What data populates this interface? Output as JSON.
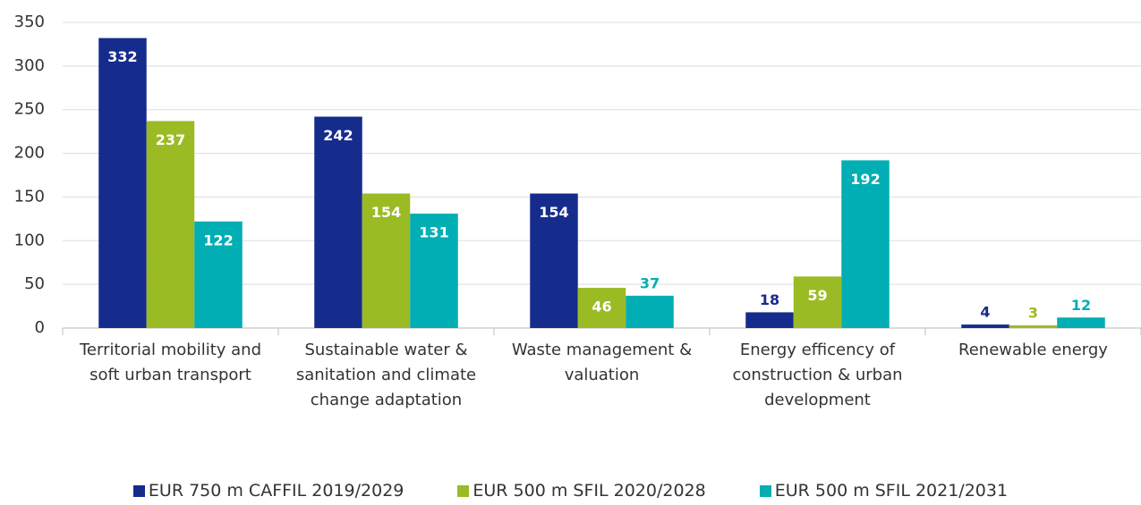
{
  "chart_data": {
    "type": "bar",
    "categories": [
      "Territorial mobility and soft urban transport",
      "Sustainable water & sanitation and climate change adaptation",
      "Waste management & valuation",
      "Energy efficency of construction & urban development",
      "Renewable energy"
    ],
    "series": [
      {
        "name": "EUR 750 m CAFFIL 2019/2029",
        "color": "#162c8c",
        "values": [
          332,
          242,
          154,
          18,
          4
        ]
      },
      {
        "name": "EUR 500 m SFIL 2020/2028",
        "color": "#9bbb24",
        "values": [
          237,
          154,
          46,
          59,
          3
        ]
      },
      {
        "name": "EUR 500 m SFIL 2021/2031",
        "color": "#00aeb3",
        "values": [
          122,
          131,
          37,
          192,
          12
        ]
      }
    ],
    "ylim": [
      0,
      350
    ],
    "yticks": [
      0,
      50,
      100,
      150,
      200,
      250,
      300,
      350
    ],
    "grid": true,
    "legend": "bottom"
  }
}
